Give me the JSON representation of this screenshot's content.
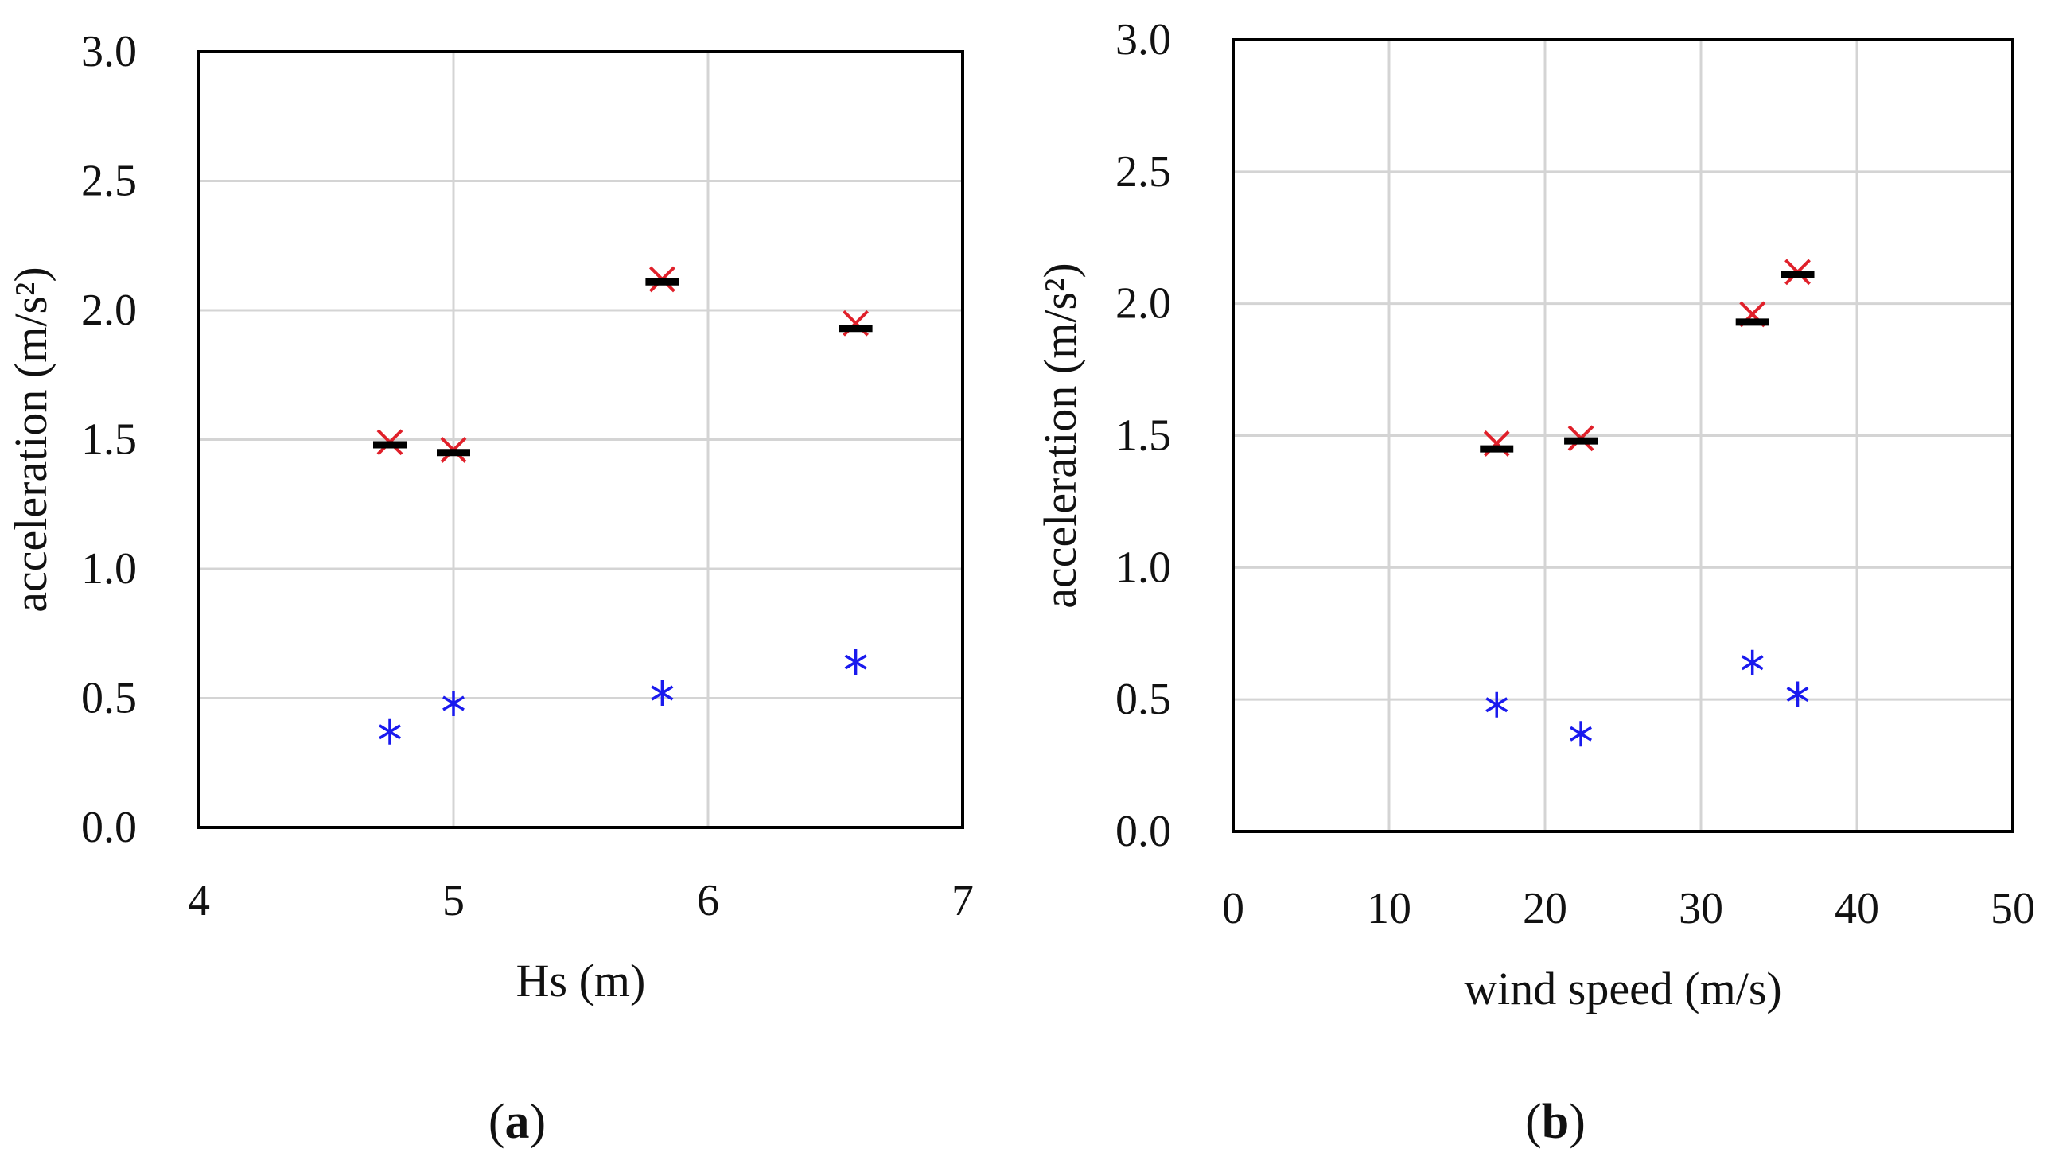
{
  "chart_data": [
    {
      "type": "scatter",
      "panel_label": "a",
      "xlabel": "Hs (m)",
      "ylabel": "acceleration (m/s²)",
      "xlim": [
        4,
        7
      ],
      "ylim": [
        0,
        3.0
      ],
      "x_ticks": [
        4,
        5,
        6,
        7
      ],
      "x_tick_labels": [
        "4",
        "5",
        "6",
        "7"
      ],
      "y_ticks": [
        0,
        0.5,
        1.0,
        1.5,
        2.0,
        2.5,
        3.0
      ],
      "y_tick_labels": [
        "0.0",
        "0.5",
        "1.0",
        "1.5",
        "2.0",
        "2.5",
        "3.0"
      ],
      "grid": true,
      "series": [
        {
          "name": "red cross",
          "marker": "x",
          "color": "#e0202a",
          "x": [
            4.75,
            5.0,
            5.82,
            6.58
          ],
          "y": [
            1.49,
            1.46,
            2.12,
            1.95
          ]
        },
        {
          "name": "black dash",
          "marker": "dash",
          "color": "#000000",
          "x": [
            4.75,
            5.0,
            5.82,
            6.58
          ],
          "y": [
            1.48,
            1.45,
            2.11,
            1.93
          ]
        },
        {
          "name": "blue asterisk",
          "marker": "asterisk",
          "color": "#1a1aee",
          "x": [
            4.75,
            5.0,
            5.82,
            6.58
          ],
          "y": [
            0.37,
            0.48,
            0.52,
            0.64
          ]
        }
      ]
    },
    {
      "type": "scatter",
      "panel_label": "b",
      "xlabel": "wind speed (m/s)",
      "ylabel": "acceleration (m/s²)",
      "xlim": [
        0,
        50
      ],
      "ylim": [
        0,
        3.0
      ],
      "x_ticks": [
        0,
        10,
        20,
        30,
        40,
        50
      ],
      "x_tick_labels": [
        "0",
        "10",
        "20",
        "30",
        "40",
        "50"
      ],
      "y_ticks": [
        0,
        0.5,
        1.0,
        1.5,
        2.0,
        2.5,
        3.0
      ],
      "y_tick_labels": [
        "0.0",
        "0.5",
        "1.0",
        "1.5",
        "2.0",
        "2.5",
        "3.0"
      ],
      "grid": true,
      "series": [
        {
          "name": "red cross",
          "marker": "x",
          "color": "#e0202a",
          "x": [
            16.9,
            22.3,
            33.3,
            36.2
          ],
          "y": [
            1.47,
            1.49,
            1.96,
            2.12
          ]
        },
        {
          "name": "black dash",
          "marker": "dash",
          "color": "#000000",
          "x": [
            16.9,
            22.3,
            33.3,
            36.2
          ],
          "y": [
            1.45,
            1.48,
            1.93,
            2.11
          ]
        },
        {
          "name": "blue asterisk",
          "marker": "asterisk",
          "color": "#1a1aee",
          "x": [
            16.9,
            22.3,
            33.3,
            36.2
          ],
          "y": [
            0.48,
            0.37,
            0.64,
            0.52
          ]
        }
      ]
    }
  ]
}
